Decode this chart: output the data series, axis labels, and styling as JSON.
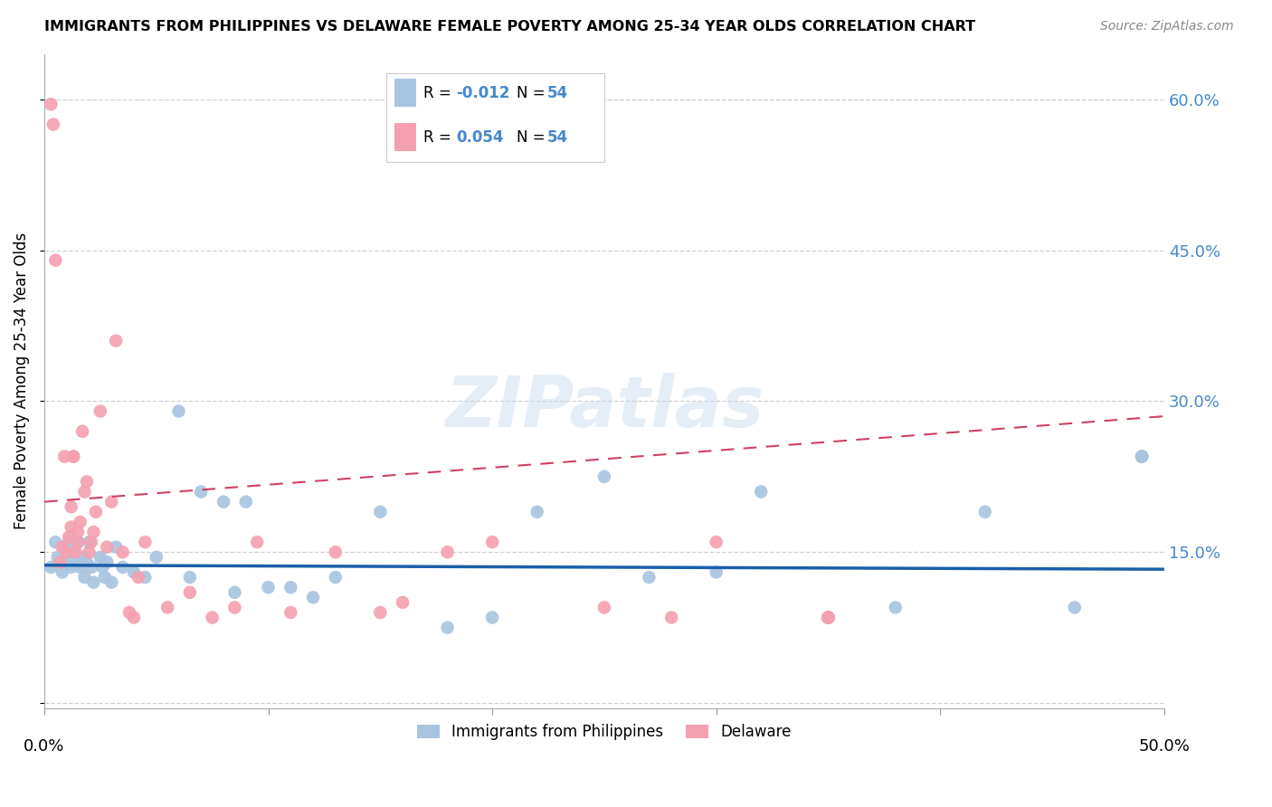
{
  "title": "IMMIGRANTS FROM PHILIPPINES VS DELAWARE FEMALE POVERTY AMONG 25-34 YEAR OLDS CORRELATION CHART",
  "source": "Source: ZipAtlas.com",
  "ylabel": "Female Poverty Among 25-34 Year Olds",
  "xlim": [
    0.0,
    0.5
  ],
  "ylim": [
    -0.005,
    0.645
  ],
  "yticks": [
    0.0,
    0.15,
    0.3,
    0.45,
    0.6
  ],
  "ytick_labels": [
    "",
    "15.0%",
    "30.0%",
    "45.0%",
    "60.0%"
  ],
  "xticks": [
    0.0,
    0.1,
    0.2,
    0.3,
    0.4,
    0.5
  ],
  "blue_color": "#a8c4e0",
  "pink_color": "#f4a0b0",
  "blue_line_color": "#1a5fa8",
  "pink_line_color": "#d04060",
  "right_axis_color": "#4488cc",
  "legend_blue_R": "-0.012",
  "legend_blue_N": "54",
  "legend_pink_R": "0.054",
  "legend_pink_N": "54",
  "watermark": "ZIPatlas",
  "blue_scatter_x": [
    0.003,
    0.005,
    0.006,
    0.008,
    0.009,
    0.01,
    0.011,
    0.012,
    0.013,
    0.015,
    0.015,
    0.016,
    0.017,
    0.018,
    0.019,
    0.02,
    0.021,
    0.022,
    0.025,
    0.026,
    0.027,
    0.028,
    0.03,
    0.032,
    0.035,
    0.04,
    0.045,
    0.05,
    0.06,
    0.065,
    0.07,
    0.08,
    0.085,
    0.09,
    0.1,
    0.11,
    0.12,
    0.13,
    0.15,
    0.18,
    0.2,
    0.22,
    0.25,
    0.27,
    0.3,
    0.32,
    0.35,
    0.38,
    0.42,
    0.46,
    0.49,
    0.49,
    0.49,
    0.49
  ],
  "blue_scatter_y": [
    0.135,
    0.16,
    0.145,
    0.13,
    0.155,
    0.145,
    0.16,
    0.135,
    0.15,
    0.14,
    0.16,
    0.135,
    0.145,
    0.125,
    0.14,
    0.16,
    0.135,
    0.12,
    0.145,
    0.135,
    0.125,
    0.14,
    0.12,
    0.155,
    0.135,
    0.13,
    0.125,
    0.145,
    0.29,
    0.125,
    0.21,
    0.2,
    0.11,
    0.2,
    0.115,
    0.115,
    0.105,
    0.125,
    0.19,
    0.075,
    0.085,
    0.19,
    0.225,
    0.125,
    0.13,
    0.21,
    0.085,
    0.095,
    0.19,
    0.095,
    0.245,
    0.245,
    0.245,
    0.245
  ],
  "pink_scatter_x": [
    0.003,
    0.004,
    0.005,
    0.007,
    0.008,
    0.009,
    0.01,
    0.011,
    0.012,
    0.012,
    0.013,
    0.013,
    0.014,
    0.015,
    0.015,
    0.016,
    0.017,
    0.018,
    0.019,
    0.02,
    0.021,
    0.022,
    0.023,
    0.025,
    0.028,
    0.03,
    0.032,
    0.035,
    0.038,
    0.04,
    0.042,
    0.045,
    0.055,
    0.065,
    0.075,
    0.085,
    0.095,
    0.11,
    0.13,
    0.15,
    0.16,
    0.18,
    0.2,
    0.25,
    0.28,
    0.3,
    0.35,
    0.35,
    0.35,
    0.35,
    0.35,
    0.35,
    0.35,
    0.35
  ],
  "pink_scatter_y": [
    0.595,
    0.575,
    0.44,
    0.14,
    0.155,
    0.245,
    0.15,
    0.165,
    0.175,
    0.195,
    0.245,
    0.245,
    0.15,
    0.16,
    0.17,
    0.18,
    0.27,
    0.21,
    0.22,
    0.15,
    0.16,
    0.17,
    0.19,
    0.29,
    0.155,
    0.2,
    0.36,
    0.15,
    0.09,
    0.085,
    0.125,
    0.16,
    0.095,
    0.11,
    0.085,
    0.095,
    0.16,
    0.09,
    0.15,
    0.09,
    0.1,
    0.15,
    0.16,
    0.095,
    0.085,
    0.16,
    0.085,
    0.085,
    0.085,
    0.085,
    0.085,
    0.085,
    0.085,
    0.085
  ],
  "blue_trend_x": [
    0.0,
    0.5
  ],
  "blue_trend_y": [
    0.137,
    0.133
  ],
  "pink_trend_x": [
    0.0,
    0.5
  ],
  "pink_trend_y": [
    0.2,
    0.285
  ]
}
